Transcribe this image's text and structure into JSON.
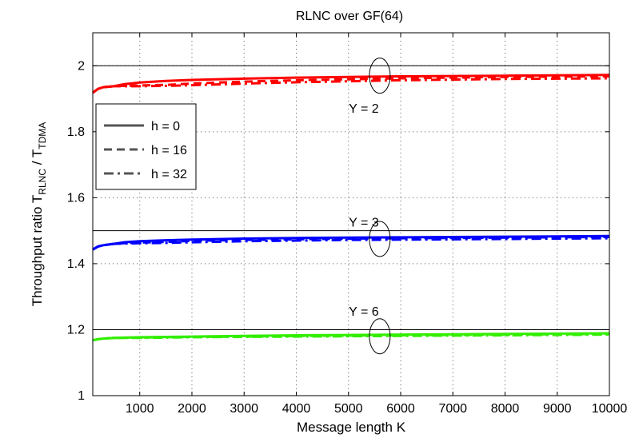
{
  "chart_data": {
    "type": "line",
    "title": "RLNC over GF(64)",
    "xlabel": "Message length K",
    "ylabel_main": "Throughput ratio T",
    "ylabel_sub1": "RLNC",
    "ylabel_sep": " / T",
    "ylabel_sub2": "TDMA",
    "xlim": [
      100,
      10000
    ],
    "ylim": [
      1,
      2.1
    ],
    "xticks": [
      1000,
      2000,
      3000,
      4000,
      5000,
      6000,
      7000,
      8000,
      9000,
      10000
    ],
    "yticks": [
      1,
      1.2,
      1.4,
      1.6,
      1.8,
      2
    ],
    "ytick_labels": [
      "1",
      "1.2",
      "1.4",
      "1.6",
      "1.8",
      "2"
    ],
    "grid": true,
    "legend_position": "upper-left",
    "legend": [
      {
        "label": "h = 0",
        "dash": "solid"
      },
      {
        "label": "h = 16",
        "dash": "dashed"
      },
      {
        "label": "h = 32",
        "dash": "dashdot"
      }
    ],
    "reference_lines": [
      2,
      1.5,
      1.2
    ],
    "annotations": [
      {
        "text": "Y = 2",
        "x": 5600,
        "y": 1.97,
        "label_y": 1.87
      },
      {
        "text": "Y = 3",
        "x": 5600,
        "y": 1.475,
        "label_y": 1.525
      },
      {
        "text": "Y = 6",
        "x": 5600,
        "y": 1.18,
        "label_y": 1.255
      }
    ],
    "groups": [
      {
        "name": "Y = 2",
        "color": "#ff0000",
        "x": [
          100,
          200,
          300,
          500,
          700,
          1000,
          1500,
          2000,
          3000,
          4000,
          5000,
          6000,
          7000,
          8000,
          9000,
          10000
        ],
        "series": [
          {
            "h": "h = 0",
            "values": [
              1.918,
              1.93,
              1.935,
              1.938,
              1.944,
              1.949,
              1.954,
              1.957,
              1.961,
              1.964,
              1.966,
              1.968,
              1.969,
              1.97,
              1.971,
              1.972
            ]
          },
          {
            "h": "h = 16",
            "values": [
              1.918,
              1.93,
              1.935,
              1.938,
              1.939,
              1.94,
              1.942,
              1.946,
              1.952,
              1.956,
              1.959,
              1.962,
              1.964,
              1.966,
              1.967,
              1.968
            ]
          },
          {
            "h": "h = 32",
            "values": [
              1.918,
              1.93,
              1.935,
              1.938,
              1.938,
              1.938,
              1.939,
              1.941,
              1.946,
              1.95,
              1.953,
              1.956,
              1.958,
              1.96,
              1.961,
              1.962
            ]
          }
        ]
      },
      {
        "name": "Y = 3",
        "color": "#0000ff",
        "x": [
          100,
          200,
          300,
          500,
          700,
          1000,
          1500,
          2000,
          3000,
          4000,
          5000,
          6000,
          7000,
          8000,
          9000,
          10000
        ],
        "series": [
          {
            "h": "h = 0",
            "values": [
              1.443,
              1.452,
              1.456,
              1.46,
              1.465,
              1.468,
              1.471,
              1.473,
              1.476,
              1.478,
              1.479,
              1.48,
              1.481,
              1.482,
              1.483,
              1.484
            ]
          },
          {
            "h": "h = 16",
            "values": [
              1.443,
              1.452,
              1.456,
              1.46,
              1.462,
              1.464,
              1.466,
              1.469,
              1.472,
              1.474,
              1.476,
              1.477,
              1.478,
              1.479,
              1.48,
              1.481
            ]
          },
          {
            "h": "h = 32",
            "values": [
              1.443,
              1.452,
              1.456,
              1.46,
              1.461,
              1.462,
              1.463,
              1.465,
              1.468,
              1.47,
              1.472,
              1.473,
              1.474,
              1.475,
              1.476,
              1.477
            ]
          }
        ]
      },
      {
        "name": "Y = 6",
        "color": "#33ee00",
        "x": [
          100,
          200,
          300,
          500,
          700,
          1000,
          1500,
          2000,
          3000,
          4000,
          5000,
          6000,
          7000,
          8000,
          9000,
          10000
        ],
        "series": [
          {
            "h": "h = 0",
            "values": [
              1.168,
              1.171,
              1.173,
              1.175,
              1.176,
              1.177,
              1.178,
              1.179,
              1.181,
              1.183,
              1.184,
              1.185,
              1.186,
              1.187,
              1.188,
              1.189
            ]
          },
          {
            "h": "h = 16",
            "values": [
              1.168,
              1.171,
              1.173,
              1.175,
              1.175,
              1.176,
              1.177,
              1.178,
              1.179,
              1.181,
              1.182,
              1.183,
              1.184,
              1.185,
              1.186,
              1.187
            ]
          },
          {
            "h": "h = 32",
            "values": [
              1.168,
              1.171,
              1.173,
              1.175,
              1.175,
              1.175,
              1.176,
              1.177,
              1.178,
              1.179,
              1.18,
              1.181,
              1.182,
              1.183,
              1.184,
              1.185
            ]
          }
        ]
      }
    ]
  }
}
